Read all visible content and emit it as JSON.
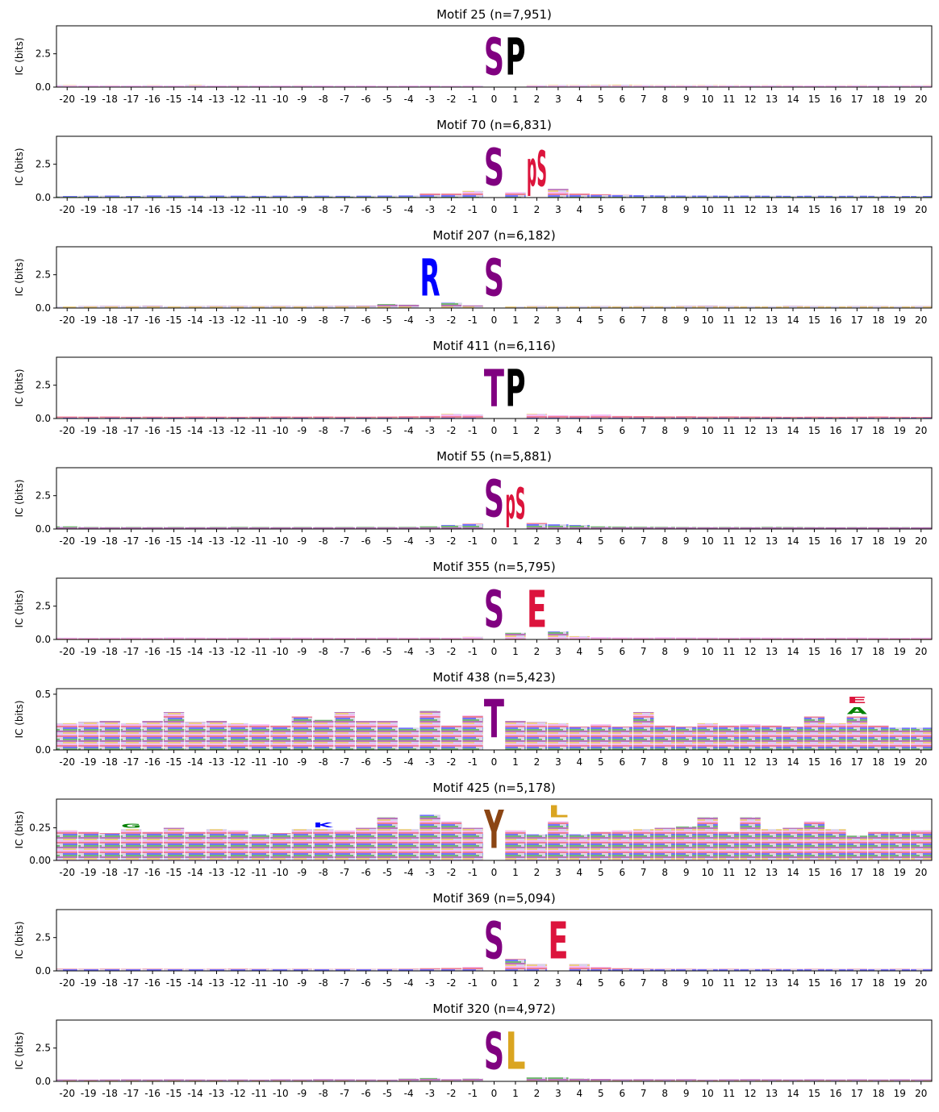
{
  "chart_data": [
    {
      "type": "logo",
      "title": "Motif 25 (n=7,951)",
      "ylabel": "IC (bits)",
      "xlim": [
        -20.5,
        20.5
      ],
      "xticks": [
        -20,
        -19,
        -18,
        -17,
        -16,
        -15,
        -14,
        -13,
        -12,
        -11,
        -10,
        -9,
        -8,
        -7,
        -6,
        -5,
        -4,
        -3,
        -2,
        -1,
        0,
        1,
        2,
        3,
        4,
        5,
        6,
        7,
        8,
        9,
        10,
        11,
        12,
        13,
        14,
        15,
        16,
        17,
        18,
        19,
        20
      ],
      "ylim": [
        0,
        4.6
      ],
      "yticks": [
        {
          "value": 0,
          "label": "0.0"
        },
        2.5
      ],
      "background": [
        0.15,
        0.12,
        0.13,
        0.12,
        0.14,
        0.12,
        0.16,
        0.12,
        0.13,
        0.12,
        0.12,
        0.13,
        0.12,
        0.11,
        0.12,
        0.1,
        0.12,
        0.12,
        0.1,
        0.11,
        0,
        0,
        0.14,
        0.16,
        0.15,
        0.17,
        0.18,
        0.15,
        0.14,
        0.14,
        0.15,
        0.14,
        0.13,
        0.14,
        0.13,
        0.12,
        0.13,
        0.14,
        0.12,
        0.13,
        0.14
      ],
      "letters": [
        {
          "letter": "S",
          "position": 0,
          "color": "#800080",
          "value": 4.5
        },
        {
          "letter": "P",
          "position": 1,
          "color": "#000000",
          "value": 4.5
        }
      ]
    },
    {
      "type": "logo",
      "title": "Motif 70 (n=6,831)",
      "ylabel": "IC (bits)",
      "xlim": [
        -20.5,
        20.5
      ],
      "xticks": [
        -20,
        -19,
        -18,
        -17,
        -16,
        -15,
        -14,
        -13,
        -12,
        -11,
        -10,
        -9,
        -8,
        -7,
        -6,
        -5,
        -4,
        -3,
        -2,
        -1,
        0,
        1,
        2,
        3,
        4,
        5,
        6,
        7,
        8,
        9,
        10,
        11,
        12,
        13,
        14,
        15,
        16,
        17,
        18,
        19,
        20
      ],
      "ylim": [
        0,
        4.6
      ],
      "yticks": [
        {
          "value": 0,
          "label": "0.0"
        },
        2.5
      ],
      "background": [
        0.12,
        0.14,
        0.15,
        0.12,
        0.16,
        0.15,
        0.14,
        0.15,
        0.14,
        0.13,
        0.14,
        0.13,
        0.14,
        0.13,
        0.14,
        0.15,
        0.16,
        0.3,
        0.3,
        0.5,
        0,
        0.4,
        0,
        0.65,
        0.3,
        0.25,
        0.2,
        0.18,
        0.16,
        0.15,
        0.15,
        0.14,
        0.15,
        0.14,
        0.13,
        0.14,
        0.13,
        0.14,
        0.13,
        0.12,
        0.12
      ],
      "letters": [
        {
          "letter": "S",
          "position": 0,
          "color": "#800080",
          "value": 4.5
        },
        {
          "letter": "pS",
          "position": 2,
          "color": "#dc143c",
          "value": 4.3
        }
      ]
    },
    {
      "type": "logo",
      "title": "Motif 207 (n=6,182)",
      "ylabel": "IC (bits)",
      "xlim": [
        -20.5,
        20.5
      ],
      "xticks": [
        -20,
        -19,
        -18,
        -17,
        -16,
        -15,
        -14,
        -13,
        -12,
        -11,
        -10,
        -9,
        -8,
        -7,
        -6,
        -5,
        -4,
        -3,
        -2,
        -1,
        0,
        1,
        2,
        3,
        4,
        5,
        6,
        7,
        8,
        9,
        10,
        11,
        12,
        13,
        14,
        15,
        16,
        17,
        18,
        19,
        20
      ],
      "ylim": [
        0,
        4.6
      ],
      "yticks": [
        {
          "value": 0,
          "label": "0.0"
        },
        2.5
      ],
      "background": [
        0.12,
        0.14,
        0.15,
        0.14,
        0.16,
        0.13,
        0.14,
        0.15,
        0.15,
        0.14,
        0.15,
        0.14,
        0.15,
        0.16,
        0.17,
        0.3,
        0.25,
        0,
        0.4,
        0.2,
        0,
        0.12,
        0.14,
        0.13,
        0.13,
        0.14,
        0.13,
        0.14,
        0.13,
        0.15,
        0.16,
        0.14,
        0.13,
        0.13,
        0.15,
        0.14,
        0.13,
        0.14,
        0.14,
        0.13,
        0.14
      ],
      "letters": [
        {
          "letter": "R",
          "position": -3,
          "color": "#0000ff",
          "value": 4.5
        },
        {
          "letter": "S",
          "position": 0,
          "color": "#800080",
          "value": 4.5
        }
      ]
    },
    {
      "type": "logo",
      "title": "Motif 411 (n=6,116)",
      "ylabel": "IC (bits)",
      "xlim": [
        -20.5,
        20.5
      ],
      "xticks": [
        -20,
        -19,
        -18,
        -17,
        -16,
        -15,
        -14,
        -13,
        -12,
        -11,
        -10,
        -9,
        -8,
        -7,
        -6,
        -5,
        -4,
        -3,
        -2,
        -1,
        0,
        1,
        2,
        3,
        4,
        5,
        6,
        7,
        8,
        9,
        10,
        11,
        12,
        13,
        14,
        15,
        16,
        17,
        18,
        19,
        20
      ],
      "ylim": [
        0,
        4.6
      ],
      "yticks": [
        {
          "value": 0,
          "label": "0.0"
        },
        2.5
      ],
      "background": [
        0.15,
        0.14,
        0.15,
        0.13,
        0.14,
        0.13,
        0.15,
        0.14,
        0.13,
        0.14,
        0.15,
        0.14,
        0.15,
        0.14,
        0.14,
        0.15,
        0.17,
        0.2,
        0.35,
        0.3,
        0,
        0,
        0.35,
        0.25,
        0.22,
        0.3,
        0.2,
        0.18,
        0.16,
        0.17,
        0.15,
        0.16,
        0.15,
        0.14,
        0.13,
        0.14,
        0.13,
        0.14,
        0.15,
        0.13,
        0.12
      ],
      "letters": [
        {
          "letter": "T",
          "position": 0,
          "color": "#800080",
          "value": 4.5
        },
        {
          "letter": "P",
          "position": 1,
          "color": "#000000",
          "value": 4.5
        }
      ]
    },
    {
      "type": "logo",
      "title": "Motif 55 (n=5,881)",
      "ylabel": "IC (bits)",
      "xlim": [
        -20.5,
        20.5
      ],
      "xticks": [
        -20,
        -19,
        -18,
        -17,
        -16,
        -15,
        -14,
        -13,
        -12,
        -11,
        -10,
        -9,
        -8,
        -7,
        -6,
        -5,
        -4,
        -3,
        -2,
        -1,
        0,
        1,
        2,
        3,
        4,
        5,
        6,
        7,
        8,
        9,
        10,
        11,
        12,
        13,
        14,
        15,
        16,
        17,
        18,
        19,
        20
      ],
      "ylim": [
        0,
        4.6
      ],
      "yticks": [
        {
          "value": 0,
          "label": "0.0"
        },
        2.5
      ],
      "background": [
        0.2,
        0.15,
        0.14,
        0.15,
        0.14,
        0.15,
        0.14,
        0.15,
        0.16,
        0.15,
        0.14,
        0.15,
        0.14,
        0.15,
        0.16,
        0.15,
        0.16,
        0.2,
        0.3,
        0.4,
        0,
        0,
        0.45,
        0.35,
        0.3,
        0.2,
        0.18,
        0.17,
        0.16,
        0.15,
        0.14,
        0.15,
        0.14,
        0.16,
        0.15,
        0.14,
        0.13,
        0.14,
        0.13,
        0.14,
        0.13
      ],
      "letters": [
        {
          "letter": "S",
          "position": 0,
          "color": "#800080",
          "value": 4.5
        },
        {
          "letter": "pS",
          "position": 1,
          "color": "#dc143c",
          "value": 3.8
        }
      ]
    },
    {
      "type": "logo",
      "title": "Motif 355 (n=5,795)",
      "ylabel": "IC (bits)",
      "xlim": [
        -20.5,
        20.5
      ],
      "xticks": [
        -20,
        -19,
        -18,
        -17,
        -16,
        -15,
        -14,
        -13,
        -12,
        -11,
        -10,
        -9,
        -8,
        -7,
        -6,
        -5,
        -4,
        -3,
        -2,
        -1,
        0,
        1,
        2,
        3,
        4,
        5,
        6,
        7,
        8,
        9,
        10,
        11,
        12,
        13,
        14,
        15,
        16,
        17,
        18,
        19,
        20
      ],
      "ylim": [
        0,
        4.6
      ],
      "yticks": [
        {
          "value": 0,
          "label": "0.0"
        },
        2.5
      ],
      "background": [
        0.14,
        0.13,
        0.14,
        0.15,
        0.14,
        0.16,
        0.15,
        0.14,
        0.15,
        0.14,
        0.16,
        0.15,
        0.14,
        0.13,
        0.14,
        0.15,
        0.14,
        0.15,
        0.14,
        0.2,
        0,
        0.5,
        0,
        0.6,
        0.25,
        0.18,
        0.16,
        0.15,
        0.17,
        0.16,
        0.15,
        0.14,
        0.16,
        0.15,
        0.14,
        0.13,
        0.14,
        0.15,
        0.14,
        0.13,
        0.14
      ],
      "letters": [
        {
          "letter": "S",
          "position": 0,
          "color": "#800080",
          "value": 4.5
        },
        {
          "letter": "E",
          "position": 2,
          "color": "#dc143c",
          "value": 4.5
        }
      ]
    },
    {
      "type": "logo",
      "title": "Motif 438 (n=5,423)",
      "ylabel": "IC (bits)",
      "xlim": [
        -20.5,
        20.5
      ],
      "xticks": [
        -20,
        -19,
        -18,
        -17,
        -16,
        -15,
        -14,
        -13,
        -12,
        -11,
        -10,
        -9,
        -8,
        -7,
        -6,
        -5,
        -4,
        -3,
        -2,
        -1,
        0,
        1,
        2,
        3,
        4,
        5,
        6,
        7,
        8,
        9,
        10,
        11,
        12,
        13,
        14,
        15,
        16,
        17,
        18,
        19,
        20
      ],
      "ylim": [
        0,
        0.55
      ],
      "yticks": [
        {
          "value": 0,
          "label": "0.0"
        },
        0.5
      ],
      "background": [
        0.24,
        0.25,
        0.26,
        0.24,
        0.26,
        0.34,
        0.25,
        0.26,
        0.24,
        0.23,
        0.22,
        0.3,
        0.27,
        0.34,
        0.26,
        0.26,
        0.2,
        0.35,
        0.22,
        0.31,
        0,
        0.26,
        0.25,
        0.24,
        0.21,
        0.23,
        0.21,
        0.34,
        0.22,
        0.21,
        0.24,
        0.22,
        0.23,
        0.22,
        0.21,
        0.3,
        0.24,
        0.3,
        0.22,
        0.2,
        0.2
      ],
      "letters": [
        {
          "letter": "T",
          "position": 0,
          "color": "#800080",
          "value": 0.55
        },
        {
          "letter": "A",
          "position": 17,
          "color": "#008000",
          "value": 0.1
        },
        {
          "letter": "E",
          "position": 17,
          "color": "#dc143c",
          "value": 0.09
        }
      ]
    },
    {
      "type": "logo",
      "title": "Motif 425 (n=5,178)",
      "ylabel": "IC (bits)",
      "xlim": [
        -20.5,
        20.5
      ],
      "xticks": [
        -20,
        -19,
        -18,
        -17,
        -16,
        -15,
        -14,
        -13,
        -12,
        -11,
        -10,
        -9,
        -8,
        -7,
        -6,
        -5,
        -4,
        -3,
        -2,
        -1,
        0,
        1,
        2,
        3,
        4,
        5,
        6,
        7,
        8,
        9,
        10,
        11,
        12,
        13,
        14,
        15,
        16,
        17,
        18,
        19,
        20
      ],
      "ylim": [
        0,
        0.47
      ],
      "yticks": [
        {
          "value": 0,
          "label": "0.00"
        },
        0.25
      ],
      "background": [
        0.23,
        0.22,
        0.21,
        0.24,
        0.22,
        0.25,
        0.22,
        0.24,
        0.23,
        0.2,
        0.21,
        0.24,
        0.24,
        0.23,
        0.25,
        0.33,
        0.24,
        0.35,
        0.3,
        0.25,
        0,
        0.23,
        0.2,
        0.3,
        0.2,
        0.22,
        0.23,
        0.24,
        0.25,
        0.26,
        0.33,
        0.22,
        0.33,
        0.24,
        0.25,
        0.3,
        0.24,
        0.19,
        0.22,
        0.22,
        0.23
      ],
      "letters": [
        {
          "letter": "G",
          "position": -17,
          "color": "#008000",
          "value": 0.05
        },
        {
          "letter": "K",
          "position": -8,
          "color": "#0000ff",
          "value": 0.06
        },
        {
          "letter": "Y",
          "position": 0,
          "color": "#8b4513",
          "value": 0.47
        },
        {
          "letter": "L",
          "position": 3,
          "color": "#daa520",
          "value": 0.15
        }
      ]
    },
    {
      "type": "logo",
      "title": "Motif 369 (n=5,094)",
      "ylabel": "IC (bits)",
      "xlim": [
        -20.5,
        20.5
      ],
      "xticks": [
        -20,
        -19,
        -18,
        -17,
        -16,
        -15,
        -14,
        -13,
        -12,
        -11,
        -10,
        -9,
        -8,
        -7,
        -6,
        -5,
        -4,
        -3,
        -2,
        -1,
        0,
        1,
        2,
        3,
        4,
        5,
        6,
        7,
        8,
        9,
        10,
        11,
        12,
        13,
        14,
        15,
        16,
        17,
        18,
        19,
        20
      ],
      "ylim": [
        0,
        4.6
      ],
      "yticks": [
        {
          "value": 0,
          "label": "0.0"
        },
        2.5
      ],
      "background": [
        0.16,
        0.15,
        0.16,
        0.15,
        0.16,
        0.15,
        0.14,
        0.15,
        0.16,
        0.15,
        0.14,
        0.15,
        0.14,
        0.15,
        0.14,
        0.15,
        0.16,
        0.2,
        0.22,
        0.3,
        0,
        0.9,
        0.5,
        0,
        0.5,
        0.3,
        0.2,
        0.16,
        0.15,
        0.15,
        0.14,
        0.15,
        0.14,
        0.15,
        0.14,
        0.15,
        0.14,
        0.15,
        0.14,
        0.15,
        0.14
      ],
      "letters": [
        {
          "letter": "S",
          "position": 0,
          "color": "#800080",
          "value": 4.5
        },
        {
          "letter": "E",
          "position": 3,
          "color": "#dc143c",
          "value": 4.5
        }
      ]
    },
    {
      "type": "logo",
      "title": "Motif 320 (n=4,972)",
      "ylabel": "IC (bits)",
      "xlim": [
        -20.5,
        20.5
      ],
      "xticks": [
        -20,
        -19,
        -18,
        -17,
        -16,
        -15,
        -14,
        -13,
        -12,
        -11,
        -10,
        -9,
        -8,
        -7,
        -6,
        -5,
        -4,
        -3,
        -2,
        -1,
        0,
        1,
        2,
        3,
        4,
        5,
        6,
        7,
        8,
        9,
        10,
        11,
        12,
        13,
        14,
        15,
        16,
        17,
        18,
        19,
        20
      ],
      "ylim": [
        0,
        4.6
      ],
      "yticks": [
        {
          "value": 0,
          "label": "0.0"
        },
        2.5
      ],
      "background": [
        0.14,
        0.13,
        0.14,
        0.15,
        0.14,
        0.15,
        0.14,
        0.13,
        0.14,
        0.13,
        0.15,
        0.14,
        0.16,
        0.15,
        0.14,
        0.13,
        0.2,
        0.25,
        0.16,
        0.2,
        0,
        0,
        0.3,
        0.3,
        0.2,
        0.18,
        0.15,
        0.16,
        0.15,
        0.16,
        0.13,
        0.15,
        0.16,
        0.15,
        0.14,
        0.15,
        0.14,
        0.15,
        0.14,
        0.15,
        0.14
      ],
      "letters": [
        {
          "letter": "S",
          "position": 0,
          "color": "#800080",
          "value": 4.5
        },
        {
          "letter": "L",
          "position": 1,
          "color": "#daa520",
          "value": 4.5
        }
      ]
    }
  ]
}
